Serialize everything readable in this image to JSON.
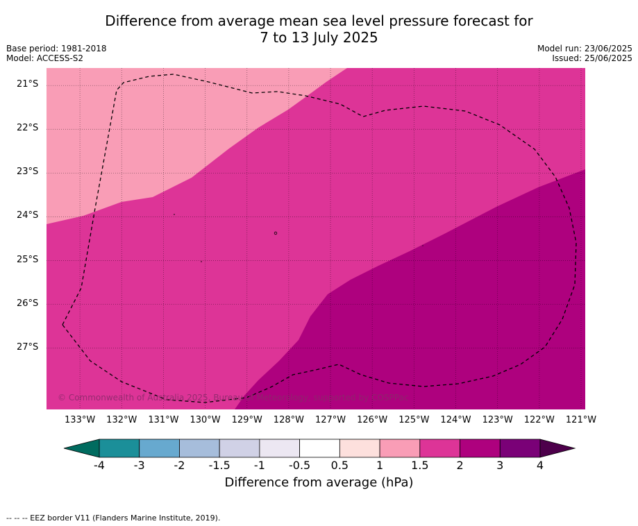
{
  "title": {
    "line1": "Difference from average mean sea level pressure forecast for",
    "line2": "7 to 13 July 2025"
  },
  "meta": {
    "base_period": "Base period: 1981-2018",
    "model": "Model: ACCESS-S2",
    "model_run": "Model run: 23/06/2025",
    "issued": "Issued: 25/06/2025"
  },
  "map": {
    "lon_range": [
      -133.8,
      -120.9
    ],
    "lat_range": [
      -28.4,
      -20.6
    ],
    "lat_ticks": [
      "21°S",
      "22°S",
      "23°S",
      "24°S",
      "25°S",
      "26°S",
      "27°S"
    ],
    "lon_ticks": [
      "133°W",
      "132°W",
      "131°W",
      "130°W",
      "129°W",
      "128°W",
      "127°W",
      "126°W",
      "125°W",
      "124°W",
      "123°W",
      "122°W",
      "121°W"
    ],
    "grid": true,
    "zones": [
      {
        "range": "1 to 1.5",
        "color": "#f99db6"
      },
      {
        "range": "1.5 to 2",
        "color": "#dd3497"
      },
      {
        "range": "2 to 3",
        "color": "#ae017e"
      }
    ],
    "copyright": "© Commonwealth of Australia 2025, Bureau of Meteorology, supported by COSPPac"
  },
  "colorbar": {
    "label": "Difference from average (hPa)",
    "ticks": [
      "-4",
      "-3",
      "-2",
      "-1.5",
      "-1",
      "-0.5",
      "0.5",
      "1",
      "1.5",
      "2",
      "3",
      "4"
    ],
    "under_color": "#006b5f",
    "over_color": "#4d004b",
    "colors": [
      "#1b8f99",
      "#67a9cf",
      "#a6bddb",
      "#d0d1e6",
      "#ece7f2",
      "#ffffff",
      "#fde0dd",
      "#f99db6",
      "#dd3497",
      "#ae017e",
      "#7a0177"
    ]
  },
  "footnote": "--  --  -- EEZ border V11 (Flanders Marine Institute, 2019)."
}
